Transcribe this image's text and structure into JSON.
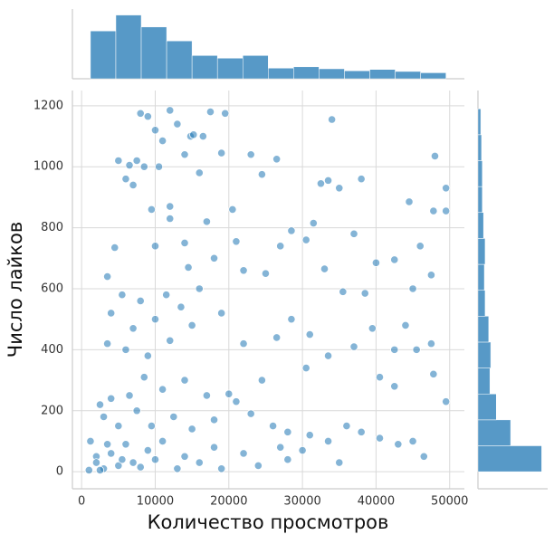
{
  "chart_data": [
    {
      "type": "scatter",
      "xlabel": "Количество просмотров",
      "ylabel": "Число лайков",
      "color": "#1f77b4",
      "grid": true,
      "xlim": [
        -1250,
        52000
      ],
      "ylim": [
        -56,
        1250
      ],
      "xticks": [
        0,
        10000,
        20000,
        30000,
        40000,
        50000
      ],
      "yticks": [
        0,
        200,
        400,
        600,
        800,
        1000,
        1200
      ],
      "x": [
        8000,
        9000,
        12000,
        14800,
        15200,
        17500,
        19500,
        13000,
        10000,
        11000,
        14000,
        16500,
        34000,
        19000,
        23000,
        26500,
        48000,
        5000,
        6500,
        7500,
        8500,
        10500,
        12000,
        6000,
        7000,
        9500,
        16000,
        24500,
        32500,
        33500,
        35000,
        38000,
        44500,
        49500,
        47800,
        49500,
        31500,
        20500,
        28500,
        30500,
        27000,
        37000,
        40000,
        42500,
        46000,
        47500,
        45000,
        38500,
        35500,
        33000,
        25000,
        22000,
        18000,
        14000,
        10000,
        4500,
        3500,
        5500,
        8000,
        11500,
        14500,
        12000,
        17000,
        21000,
        16000,
        13500,
        10000,
        7000,
        4000,
        3500,
        6000,
        9000,
        12000,
        15000,
        19000,
        22000,
        28500,
        31000,
        26500,
        33500,
        37000,
        39500,
        42500,
        44000,
        47500,
        45500,
        40500,
        42500,
        49500,
        47800,
        30500,
        24500,
        20000,
        17000,
        14000,
        11000,
        8500,
        6500,
        4000,
        2500,
        3000,
        5000,
        7500,
        9500,
        12500,
        15000,
        18000,
        21000,
        23000,
        26000,
        28000,
        31000,
        33500,
        36000,
        38000,
        40500,
        43000,
        45000,
        46500,
        35000,
        28000,
        22000,
        18000,
        14000,
        10000,
        7000,
        5000,
        3000,
        2000,
        1200,
        1000,
        2500,
        4000,
        6000,
        8000,
        11000,
        13000,
        16000,
        19000,
        24000,
        27000,
        30000,
        2000,
        3500,
        5500,
        9000
      ],
      "y": [
        1175,
        1165,
        1185,
        1100,
        1105,
        1180,
        1175,
        1140,
        1120,
        1085,
        1040,
        1100,
        1155,
        1045,
        1040,
        1025,
        1035,
        1020,
        1005,
        1020,
        1000,
        1000,
        870,
        960,
        940,
        860,
        980,
        975,
        945,
        955,
        930,
        960,
        885,
        930,
        855,
        855,
        815,
        860,
        790,
        760,
        740,
        780,
        685,
        695,
        740,
        645,
        600,
        585,
        590,
        665,
        650,
        660,
        700,
        750,
        740,
        735,
        640,
        580,
        560,
        580,
        670,
        830,
        820,
        755,
        600,
        540,
        500,
        470,
        520,
        420,
        400,
        380,
        430,
        480,
        520,
        420,
        500,
        450,
        440,
        380,
        410,
        470,
        400,
        480,
        420,
        400,
        310,
        280,
        230,
        320,
        340,
        300,
        255,
        250,
        300,
        270,
        310,
        250,
        240,
        220,
        180,
        150,
        200,
        150,
        180,
        140,
        170,
        230,
        190,
        150,
        130,
        120,
        100,
        150,
        130,
        110,
        90,
        100,
        50,
        30,
        40,
        60,
        80,
        50,
        40,
        30,
        20,
        10,
        50,
        100,
        5,
        5,
        60,
        90,
        15,
        100,
        10,
        30,
        10,
        20,
        80,
        70,
        30,
        90,
        40,
        70
      ]
    },
    {
      "type": "histogram",
      "orientation": "vertical",
      "color": "#1f77b4",
      "xlim": [
        -1250,
        52000
      ],
      "ylim": [
        0,
        105
      ],
      "bins": [
        1200,
        4650,
        8100,
        11550,
        15000,
        18450,
        21900,
        25350,
        28800,
        32250,
        35700,
        39150,
        42600,
        46050,
        49500
      ],
      "counts": [
        72,
        96,
        78,
        57,
        35,
        31,
        35,
        16,
        18,
        15,
        12,
        14,
        11,
        9
      ]
    },
    {
      "type": "histogram",
      "orientation": "horizontal",
      "color": "#1f77b4",
      "xlim": [
        0,
        175
      ],
      "ylim": [
        -56,
        1250
      ],
      "bins": [
        0,
        85,
        170,
        255,
        340,
        425,
        510,
        595,
        680,
        765,
        850,
        935,
        1020,
        1105,
        1190
      ],
      "counts": [
        160,
        82,
        46,
        30,
        32,
        27,
        18,
        16,
        18,
        14,
        11,
        11,
        9,
        7
      ]
    }
  ]
}
